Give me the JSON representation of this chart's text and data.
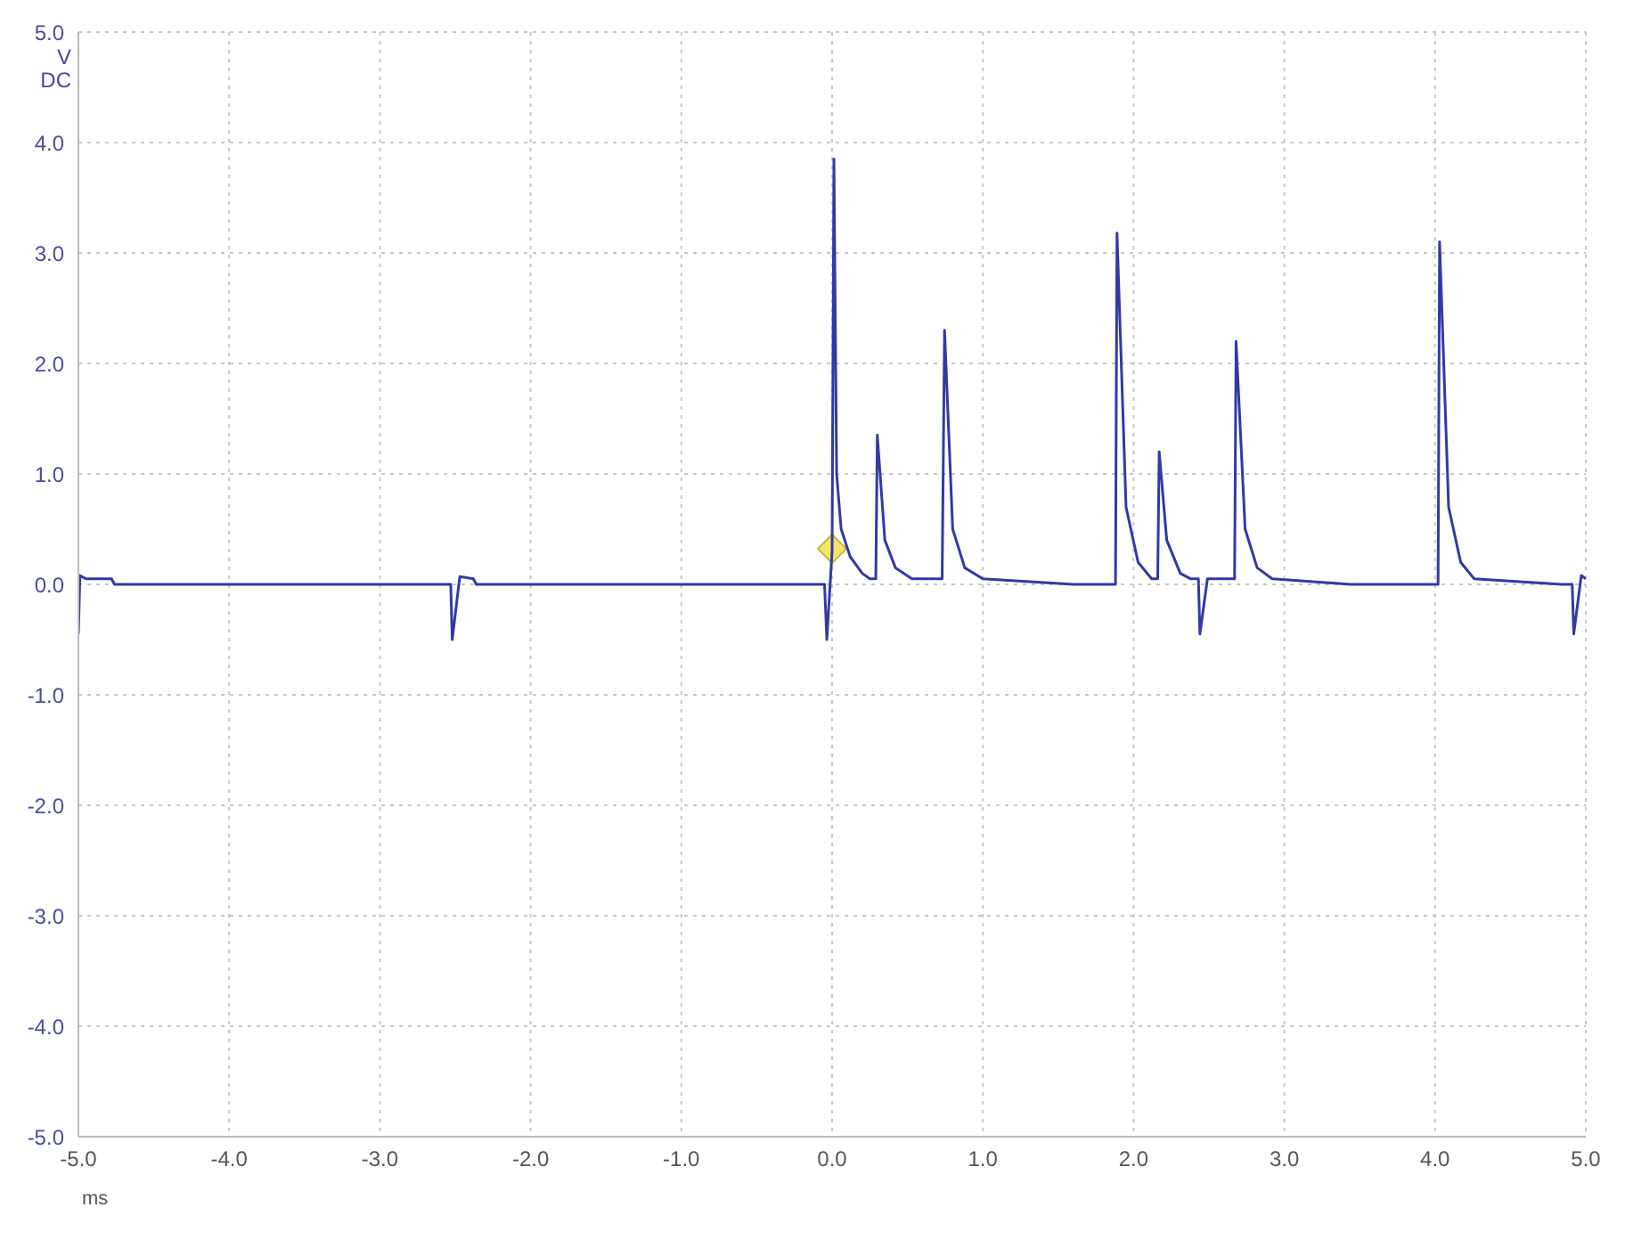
{
  "chart_data": {
    "type": "line",
    "xlabel": "ms",
    "ylabel": "V DC",
    "x": [
      -5.0,
      -4.99,
      -4.95,
      -4.78,
      -4.76,
      -2.53,
      -2.52,
      -2.47,
      -2.38,
      -2.36,
      -0.05,
      -0.035,
      0.0,
      0.012,
      0.03,
      0.06,
      0.12,
      0.2,
      0.25,
      0.29,
      0.3,
      0.35,
      0.42,
      0.53,
      0.73,
      0.746,
      0.8,
      0.88,
      1.0,
      1.6,
      1.88,
      1.89,
      1.95,
      2.03,
      2.12,
      2.16,
      2.17,
      2.22,
      2.31,
      2.38,
      2.43,
      2.44,
      2.49,
      2.67,
      2.68,
      2.74,
      2.82,
      2.92,
      3.44,
      4.02,
      4.03,
      4.09,
      4.17,
      4.26,
      4.84,
      4.91,
      4.92,
      4.97,
      5.0
    ],
    "series": [
      {
        "color": "#3338a8",
        "values": [
          -0.45,
          0.08,
          0.05,
          0.05,
          0.0,
          0.0,
          -0.5,
          0.07,
          0.05,
          0.0,
          0.0,
          -0.5,
          0.3,
          3.85,
          1.0,
          0.5,
          0.25,
          0.1,
          0.05,
          0.05,
          1.35,
          0.4,
          0.15,
          0.05,
          0.05,
          2.3,
          0.5,
          0.15,
          0.05,
          0.0,
          0.0,
          3.18,
          0.7,
          0.2,
          0.05,
          0.05,
          1.2,
          0.4,
          0.1,
          0.05,
          0.05,
          -0.45,
          0.05,
          0.05,
          2.2,
          0.5,
          0.15,
          0.05,
          0.0,
          0.0,
          3.1,
          0.7,
          0.2,
          0.05,
          0.0,
          0.0,
          -0.45,
          0.08,
          0.05
        ]
      }
    ],
    "xlim": [
      -5.0,
      5.0
    ],
    "xticks": [
      {
        "value": -5,
        "label": "-5.0"
      },
      {
        "value": -4,
        "label": "-4.0"
      },
      {
        "value": -3,
        "label": "-3.0"
      },
      {
        "value": -2,
        "label": "-2.0"
      },
      {
        "value": -1,
        "label": "-1.0"
      },
      {
        "value": 0,
        "label": "0.0"
      },
      {
        "value": 1,
        "label": "1.0"
      },
      {
        "value": 2,
        "label": "2.0"
      },
      {
        "value": 3,
        "label": "3.0"
      },
      {
        "value": 4,
        "label": "4.0"
      },
      {
        "value": 5,
        "label": "5.0"
      }
    ],
    "ylim": [
      -5.0,
      5.0
    ],
    "yticks": [
      {
        "value": -5,
        "label": "-5.0"
      },
      {
        "value": -4,
        "label": "-4.0"
      },
      {
        "value": -3,
        "label": "-3.0"
      },
      {
        "value": -2,
        "label": "-2.0"
      },
      {
        "value": -1,
        "label": "-1.0"
      },
      {
        "value": 0,
        "label": "0.0"
      },
      {
        "value": 1,
        "label": "1.0"
      },
      {
        "value": 2,
        "label": "2.0"
      },
      {
        "value": 3,
        "label": "3.0"
      },
      {
        "value": 4,
        "label": "4.0"
      },
      {
        "value": 5,
        "label": "5.0"
      }
    ],
    "grid": true,
    "legend": false,
    "marker": "none",
    "line_style": "solid"
  }
}
